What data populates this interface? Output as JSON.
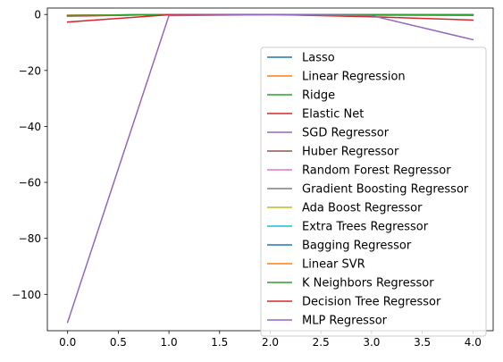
{
  "chart_data": {
    "type": "line",
    "title": "",
    "xlabel": "",
    "ylabel": "",
    "xlim": [
      -0.2,
      4.2
    ],
    "ylim": [
      -113,
      2.3
    ],
    "xticks": [
      0.0,
      0.5,
      1.0,
      1.5,
      2.0,
      2.5,
      3.0,
      3.5,
      4.0
    ],
    "xtick_labels": [
      "0.0",
      "0.5",
      "1.0",
      "1.5",
      "2.0",
      "2.5",
      "3.0",
      "3.5",
      "4.0"
    ],
    "yticks": [
      0,
      -20,
      -40,
      -60,
      -80,
      -100
    ],
    "ytick_labels": [
      "0",
      "−20",
      "−40",
      "−60",
      "−80",
      "−100"
    ],
    "grid": false,
    "legend_position": "right",
    "x": [
      0,
      1,
      2,
      3,
      4
    ],
    "series": [
      {
        "name": "Lasso",
        "color": "#1f77b4",
        "values": [
          -0.5,
          0.0,
          0.0,
          0.0,
          -0.1
        ]
      },
      {
        "name": "Linear Regression",
        "color": "#ff7f0e",
        "values": [
          -0.3,
          0.0,
          0.0,
          0.0,
          -0.1
        ]
      },
      {
        "name": "Ridge",
        "color": "#2ca02c",
        "values": [
          -0.3,
          0.0,
          0.0,
          0.0,
          -0.1
        ]
      },
      {
        "name": "Elastic Net",
        "color": "#d62728",
        "values": [
          -0.6,
          0.0,
          0.0,
          -0.2,
          -0.3
        ]
      },
      {
        "name": "SGD Regressor",
        "color": "#9467bd",
        "values": [
          -0.3,
          0.0,
          0.0,
          0.0,
          -0.1
        ]
      },
      {
        "name": "Huber Regressor",
        "color": "#8c564b",
        "values": [
          -0.4,
          0.0,
          0.0,
          0.0,
          -0.1
        ]
      },
      {
        "name": "Random Forest Regressor",
        "color": "#e377c2",
        "values": [
          -0.4,
          0.0,
          0.0,
          0.0,
          -0.1
        ]
      },
      {
        "name": "Gradient Boosting Regressor",
        "color": "#7f7f7f",
        "values": [
          -0.4,
          0.0,
          0.0,
          0.0,
          -0.1
        ]
      },
      {
        "name": "Ada Boost Regressor",
        "color": "#bcbd22",
        "values": [
          -0.4,
          0.0,
          0.0,
          0.0,
          -0.1
        ]
      },
      {
        "name": "Extra Trees Regressor",
        "color": "#17becf",
        "values": [
          -0.4,
          0.0,
          0.0,
          0.0,
          -0.1
        ]
      },
      {
        "name": "Bagging Regressor",
        "color": "#1f77b4",
        "values": [
          -0.4,
          0.0,
          0.0,
          0.0,
          -0.1
        ]
      },
      {
        "name": "Linear SVR",
        "color": "#ff7f0e",
        "values": [
          -0.3,
          0.0,
          0.0,
          0.0,
          -0.1
        ]
      },
      {
        "name": "K Neighbors Regressor",
        "color": "#2ca02c",
        "values": [
          -0.4,
          0.0,
          0.0,
          0.0,
          -0.1
        ]
      },
      {
        "name": "Decision Tree Regressor",
        "color": "#d62728",
        "values": [
          -2.7,
          -0.1,
          0.0,
          -0.8,
          -2.0
        ]
      },
      {
        "name": "MLP Regressor",
        "color": "#9467bd",
        "values": [
          -110.0,
          -0.4,
          -0.1,
          -0.4,
          -9.0
        ]
      }
    ]
  }
}
